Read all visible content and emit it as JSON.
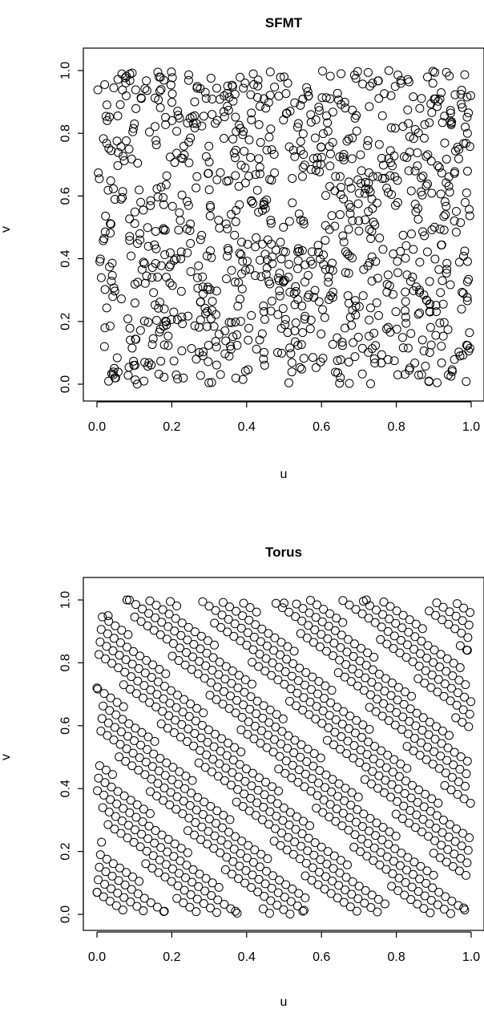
{
  "chart_data": [
    {
      "type": "scatter",
      "title": "SFMT",
      "xlabel": "u",
      "ylabel": "v",
      "xlim": [
        0,
        1
      ],
      "ylim": [
        0,
        1
      ],
      "xticks": [
        "0.0",
        "0.2",
        "0.4",
        "0.6",
        "0.8",
        "1.0"
      ],
      "yticks": [
        "0.0",
        "0.2",
        "0.4",
        "0.6",
        "0.8",
        "1.0"
      ],
      "marker": "open-circle",
      "point_color": "#000000",
      "grid": false,
      "n_points": 1000,
      "point_generator": "uniform-pseudorandom",
      "sample_points": [
        [
          0.02,
          0.12
        ],
        [
          0.05,
          0.02
        ],
        [
          0.1,
          0.83
        ],
        [
          0.18,
          0.24
        ],
        [
          0.3,
          0.62
        ],
        [
          0.45,
          0.56
        ],
        [
          0.5,
          0.98
        ],
        [
          0.62,
          0.27
        ],
        [
          0.78,
          1.0
        ],
        [
          0.85,
          0.68
        ],
        [
          0.97,
          0.09
        ],
        [
          0.99,
          0.8
        ]
      ]
    },
    {
      "type": "scatter",
      "title": "Torus",
      "xlabel": "u",
      "ylabel": "v",
      "xlim": [
        0,
        1
      ],
      "ylim": [
        0,
        1
      ],
      "xticks": [
        "0.0",
        "0.2",
        "0.4",
        "0.6",
        "0.8",
        "1.0"
      ],
      "yticks": [
        "0.0",
        "0.2",
        "0.4",
        "0.6",
        "0.8",
        "1.0"
      ],
      "marker": "open-circle",
      "point_color": "#000000",
      "grid": false,
      "n_points": 1000,
      "point_generator": "torus-lattice",
      "sample_points": [
        [
          0.0,
          0.07
        ],
        [
          0.0,
          0.72
        ],
        [
          0.03,
          0.95
        ],
        [
          0.08,
          1.0
        ],
        [
          0.18,
          0.01
        ],
        [
          0.37,
          0.01
        ],
        [
          0.5,
          0.99
        ],
        [
          0.55,
          0.01
        ],
        [
          0.72,
          1.0
        ],
        [
          0.98,
          0.02
        ],
        [
          0.99,
          0.84
        ]
      ]
    }
  ]
}
